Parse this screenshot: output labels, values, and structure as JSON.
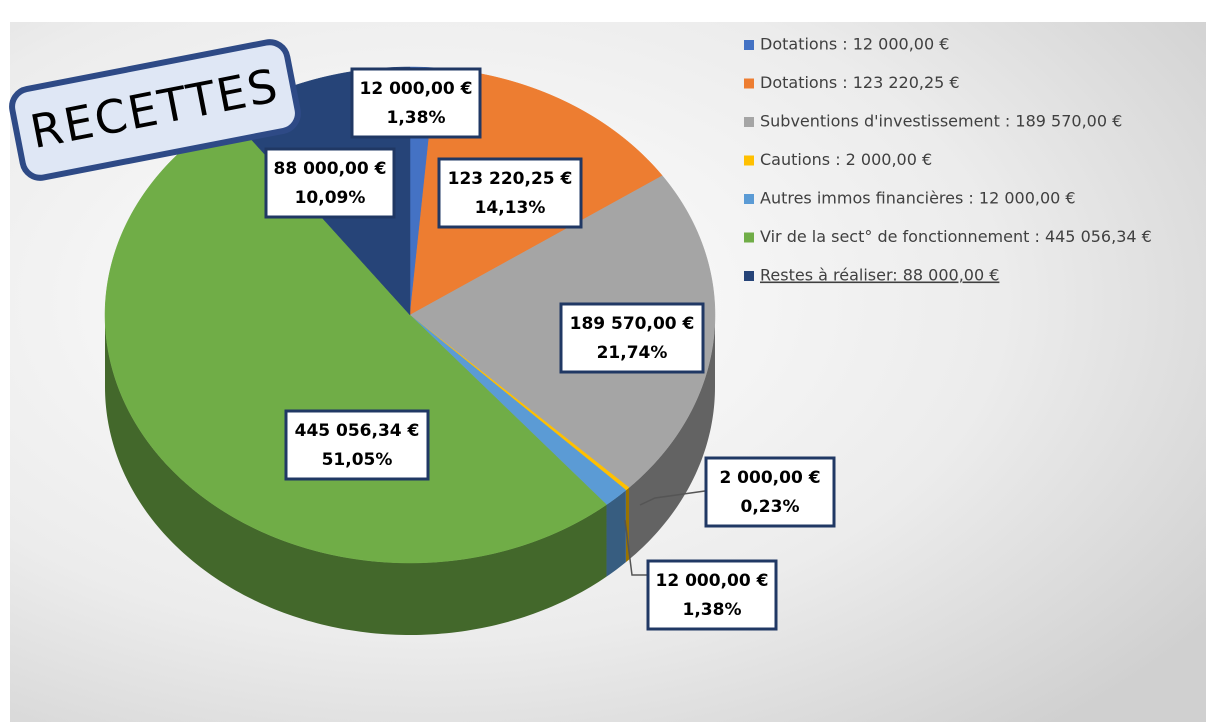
{
  "chart_data": {
    "type": "pie",
    "title": "RECETTES",
    "categories": [
      "Dotations : 12 000,00 €",
      "Dotations : 123 220,25 €",
      "Subventions d'investissement : 189 570,00 €",
      "Cautions : 2 000,00 €",
      "Autres immos financières : 12 000,00 €",
      "Vir de la sect° de fonctionnement : 445 056,34 €",
      "Restes à réaliser: 88 000,00 €"
    ],
    "values": [
      12000,
      123220.25,
      189570,
      2000,
      12000,
      445056.34,
      88000
    ],
    "value_labels": [
      "12 000,00 €",
      "123 220,25 €",
      "189 570,00 €",
      "2 000,00 €",
      "12 000,00 €",
      "445 056,34 €",
      "88 000,00 €"
    ],
    "percent_labels": [
      "1,38%",
      "14,13%",
      "21,74%",
      "0,23%",
      "1,38%",
      "51,05%",
      "10,09%"
    ],
    "colors": [
      "#4472c4",
      "#ed7d31",
      "#a5a5a5",
      "#ffc000",
      "#5b9bd5",
      "#70ad47",
      "#264478"
    ],
    "legend": "right"
  }
}
